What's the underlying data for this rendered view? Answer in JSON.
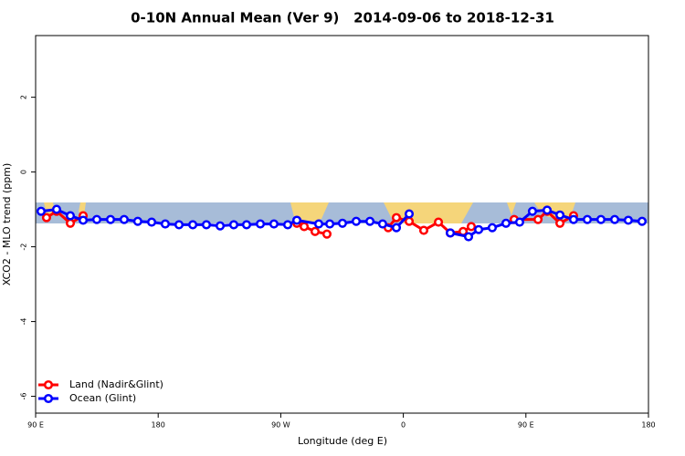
{
  "chart_data": {
    "type": "line",
    "title": "0-10N Annual Mean (Ver 9)   2014-09-06 to 2018-12-31",
    "xlabel": "Longitude (deg E)",
    "ylabel": "XCO2 - MLO trend (ppm)",
    "xlim": [
      90,
      540
    ],
    "xticks": [
      {
        "value": 90,
        "label": "90 E"
      },
      180,
      {
        "value": 270,
        "label": "90 W"
      },
      {
        "value": 360,
        "label": "0"
      },
      {
        "value": 450,
        "label": "90 E"
      },
      {
        "value": 540,
        "label": "180"
      }
    ],
    "ylim": [
      -6.45,
      3.65
    ],
    "yticks": [
      -6,
      -4,
      -2,
      0,
      2
    ],
    "legend": "bottom-left",
    "series": [
      {
        "name": "Land (Nadir&Glint)",
        "color": "#ff0000",
        "x": [
          98,
          105.4,
          115.5,
          124.9,
          null,
          281.8,
          287.2,
          295.2,
          303.9,
          null,
          348.9,
          354.9,
          364.3,
          375,
          385.8,
          394.5,
          403.9,
          409.9,
          null,
          441.4,
          458.9,
          465.6,
          475,
          485
        ],
        "values": [
          -1.22,
          -1.05,
          -1.37,
          -1.17,
          null,
          -1.37,
          -1.46,
          -1.59,
          -1.66,
          null,
          -1.49,
          -1.22,
          -1.32,
          -1.56,
          -1.34,
          -1.63,
          -1.59,
          -1.46,
          null,
          -1.27,
          -1.27,
          -1.05,
          -1.37,
          -1.17
        ]
      },
      {
        "name": "Ocean (Glint)",
        "color": "#0000ff",
        "x": [
          94,
          105.4,
          115.5,
          124.9,
          134.9,
          145,
          155,
          165,
          175.2,
          185.2,
          195.3,
          205.4,
          215.4,
          225.5,
          235.5,
          244.9,
          255,
          265,
          275.1,
          281.8,
          297.9,
          306,
          315.3,
          325.4,
          335.5,
          344.8,
          354.9,
          364.3,
          null,
          394.5,
          407.9,
          415.3,
          425.3,
          435.4,
          445.4,
          454.8,
          465.6,
          475,
          485,
          495.1,
          505.1,
          515.2,
          525.2,
          535.3
        ],
        "values": [
          -1.05,
          -1.0,
          -1.17,
          -1.29,
          -1.27,
          -1.27,
          -1.27,
          -1.32,
          -1.34,
          -1.39,
          -1.41,
          -1.41,
          -1.41,
          -1.44,
          -1.41,
          -1.41,
          -1.39,
          -1.39,
          -1.41,
          -1.29,
          -1.39,
          -1.39,
          -1.37,
          -1.32,
          -1.32,
          -1.39,
          -1.49,
          -1.12,
          null,
          -1.63,
          -1.73,
          -1.54,
          -1.49,
          -1.37,
          -1.34,
          -1.05,
          -1.02,
          -1.15,
          -1.27,
          -1.27,
          -1.27,
          -1.27,
          -1.29,
          -1.32
        ]
      }
    ]
  }
}
